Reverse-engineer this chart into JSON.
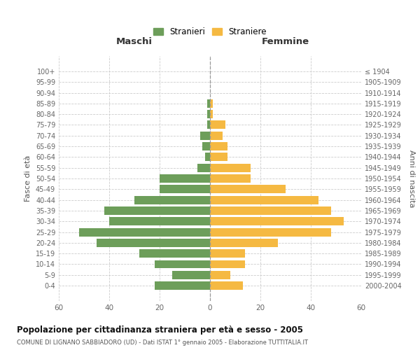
{
  "age_groups": [
    "100+",
    "95-99",
    "90-94",
    "85-89",
    "80-84",
    "75-79",
    "70-74",
    "65-69",
    "60-64",
    "55-59",
    "50-54",
    "45-49",
    "40-44",
    "35-39",
    "30-34",
    "25-29",
    "20-24",
    "15-19",
    "10-14",
    "5-9",
    "0-4"
  ],
  "birth_years": [
    "≤ 1904",
    "1905-1909",
    "1910-1914",
    "1915-1919",
    "1920-1924",
    "1925-1929",
    "1930-1934",
    "1935-1939",
    "1940-1944",
    "1945-1949",
    "1950-1954",
    "1955-1959",
    "1960-1964",
    "1965-1969",
    "1970-1974",
    "1975-1979",
    "1980-1984",
    "1985-1989",
    "1990-1994",
    "1995-1999",
    "2000-2004"
  ],
  "males": [
    0,
    0,
    0,
    1,
    1,
    1,
    4,
    3,
    2,
    5,
    20,
    20,
    30,
    42,
    40,
    52,
    45,
    28,
    22,
    15,
    22
  ],
  "females": [
    0,
    0,
    0,
    1,
    1,
    6,
    5,
    7,
    7,
    16,
    16,
    30,
    43,
    48,
    53,
    48,
    27,
    14,
    14,
    8,
    13
  ],
  "male_color": "#6d9e5a",
  "female_color": "#f5b942",
  "grid_color": "#cccccc",
  "zero_line_color": "#999999",
  "title": "Popolazione per cittadinanza straniera per età e sesso - 2005",
  "subtitle": "COMUNE DI LIGNANO SABBIADORO (UD) - Dati ISTAT 1° gennaio 2005 - Elaborazione TUTTITALIA.IT",
  "left_header": "Maschi",
  "right_header": "Femmine",
  "ylabel_left": "Fasce di età",
  "ylabel_right": "Anni di nascita",
  "legend_male": "Stranieri",
  "legend_female": "Straniere",
  "xlim": 60,
  "bar_height": 0.78
}
